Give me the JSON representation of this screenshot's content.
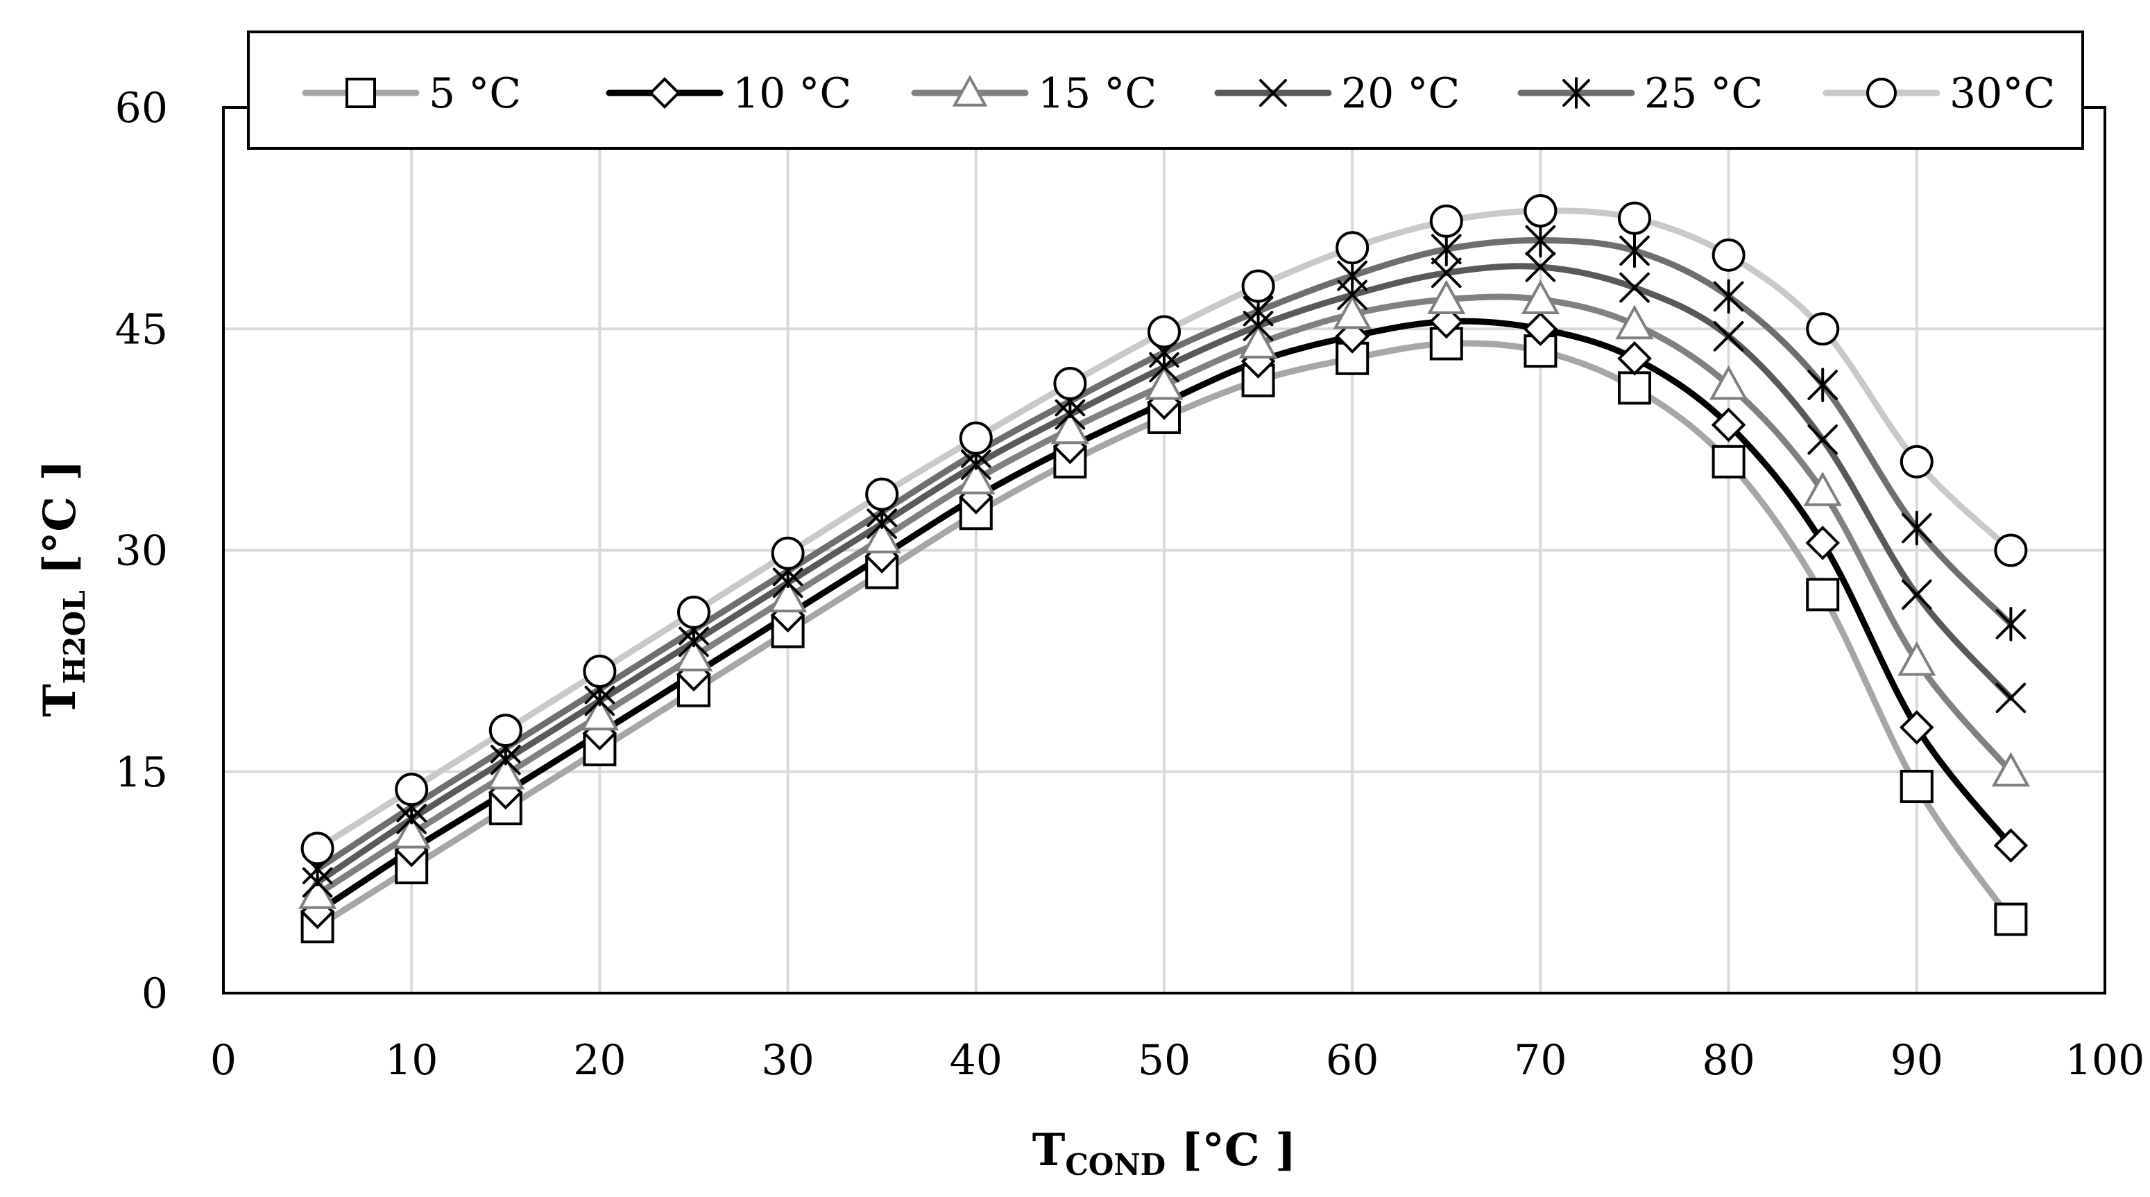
{
  "chart_data": {
    "type": "line",
    "title": "",
    "xlabel": {
      "main": "T",
      "sub": "COND",
      "unit": " [°C ]"
    },
    "ylabel": {
      "main": "T",
      "sub": "H2OL",
      "unit": " [°C ]"
    },
    "xlim": [
      0,
      100
    ],
    "ylim": [
      0,
      60
    ],
    "xticks": [
      0,
      10,
      20,
      30,
      40,
      50,
      60,
      70,
      80,
      90,
      100
    ],
    "yticks": [
      0,
      15,
      30,
      45,
      60
    ],
    "grid": true,
    "legend_position": "top",
    "x": [
      5,
      10,
      15,
      20,
      25,
      30,
      35,
      40,
      45,
      50,
      55,
      60,
      65,
      70,
      75,
      80,
      85,
      90,
      95
    ],
    "series": [
      {
        "name": "5 °C",
        "marker": "square",
        "color": "#a6a6a6",
        "width": 9,
        "values": [
          4.5,
          8.5,
          12.5,
          16.5,
          20.5,
          24.5,
          28.5,
          32.5,
          36,
          39,
          41.5,
          43,
          44,
          43.5,
          41,
          36,
          27,
          14,
          5
        ]
      },
      {
        "name": "10 °C",
        "marker": "diamond",
        "color": "#000000",
        "width": 9,
        "values": [
          5.5,
          9.7,
          13.6,
          17.6,
          21.6,
          25.6,
          29.6,
          33.6,
          37,
          40,
          42.8,
          44.5,
          45.5,
          45,
          43,
          38.5,
          30.5,
          18,
          10
        ]
      },
      {
        "name": "15 °C",
        "marker": "triangle",
        "color": "#808080",
        "width": 9,
        "values": [
          6.7,
          10.8,
          14.8,
          18.8,
          22.8,
          26.8,
          30.8,
          34.8,
          38.2,
          41.2,
          44,
          46,
          47,
          47,
          45.3,
          41.2,
          34,
          22.5,
          15
        ]
      },
      {
        "name": "20 °C",
        "marker": "x",
        "color": "#595959",
        "width": 9,
        "values": [
          7.5,
          11.8,
          15.8,
          19.8,
          23.8,
          27.8,
          31.8,
          35.8,
          39.2,
          42.4,
          45.2,
          47.3,
          48.8,
          49.2,
          47.8,
          44.5,
          37.5,
          27,
          20
        ]
      },
      {
        "name": "25 °C",
        "marker": "asterisk",
        "color": "#6e6e6e",
        "width": 9,
        "values": [
          8.4,
          12.6,
          16.6,
          20.6,
          24.6,
          28.6,
          32.6,
          36.6,
          40.1,
          43.4,
          46.2,
          48.6,
          50.4,
          51,
          50.3,
          47.2,
          41.2,
          31.5,
          25
        ]
      },
      {
        "name": "30°C",
        "marker": "circle",
        "color": "#c9c9c9",
        "width": 9,
        "values": [
          9.8,
          13.8,
          17.8,
          21.8,
          25.8,
          29.8,
          33.8,
          37.6,
          41.3,
          44.8,
          47.9,
          50.5,
          52.3,
          53,
          52.5,
          50,
          45,
          36,
          30
        ]
      }
    ]
  }
}
